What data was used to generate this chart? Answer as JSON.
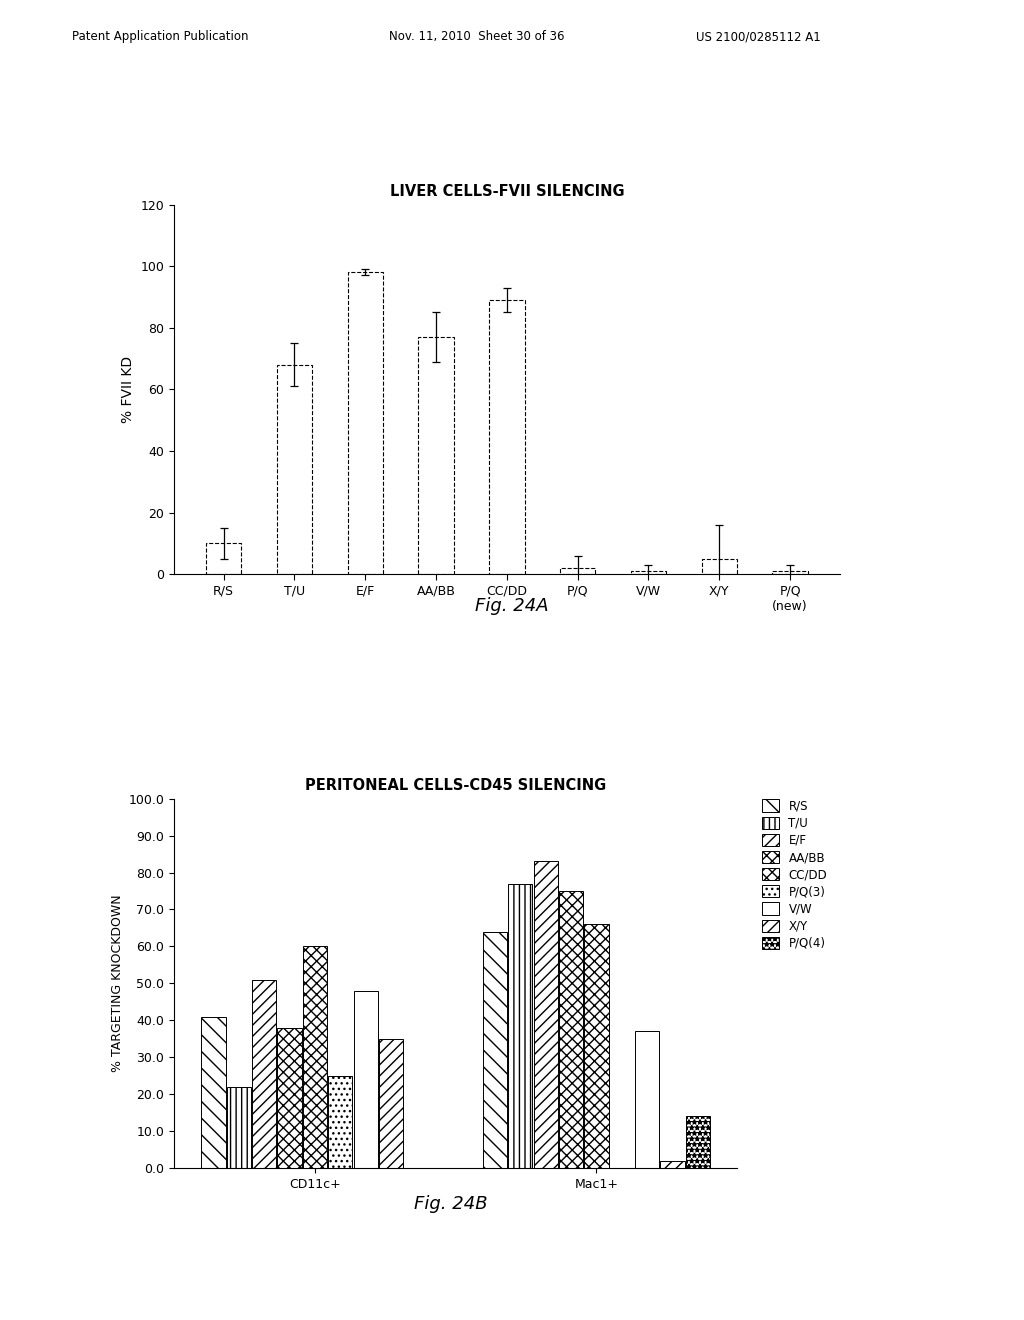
{
  "fig24a": {
    "title": "LIVER CELLS-FVII SILENCING",
    "ylabel": "% FVII KD",
    "categories": [
      "R/S",
      "T/U",
      "E/F",
      "AA/BB",
      "CC/DD",
      "P/Q",
      "V/W",
      "X/Y",
      "P/Q\n(new)"
    ],
    "values": [
      10,
      68,
      98,
      77,
      89,
      2,
      1,
      5,
      1
    ],
    "errors": [
      5,
      7,
      1,
      8,
      4,
      4,
      2,
      11,
      2
    ],
    "ylim": [
      0,
      120
    ],
    "yticks": [
      0,
      20,
      40,
      60,
      80,
      100,
      120
    ]
  },
  "fig24b": {
    "title": "PERITONEAL CELLS-CD45 SILENCING",
    "ylabel": "% TARGETING KNOCKDOWN",
    "xlabel_groups": [
      "CD11c+",
      "Mac1+"
    ],
    "legend_labels": [
      "R/S",
      "T/U",
      "E/F",
      "AA/BB",
      "CC/DD",
      "P/Q(3)",
      "V/W",
      "X/Y",
      "P/Q(4)"
    ],
    "cd11c_values": [
      41,
      22,
      51,
      38,
      60,
      25,
      48,
      35,
      0
    ],
    "mac1_values": [
      64,
      77,
      83,
      75,
      66,
      0,
      37,
      2,
      14
    ],
    "ylim": [
      0,
      100
    ],
    "yticks": [
      0.0,
      10.0,
      20.0,
      30.0,
      40.0,
      50.0,
      60.0,
      70.0,
      80.0,
      90.0,
      100.0
    ]
  },
  "header_left": "Patent Application Publication",
  "header_mid": "Nov. 11, 2010  Sheet 30 of 36",
  "header_right": "US 2100/0285112 A1",
  "fig_label_a": "Fig. 24A",
  "fig_label_b": "Fig. 24B",
  "background_color": "#ffffff"
}
